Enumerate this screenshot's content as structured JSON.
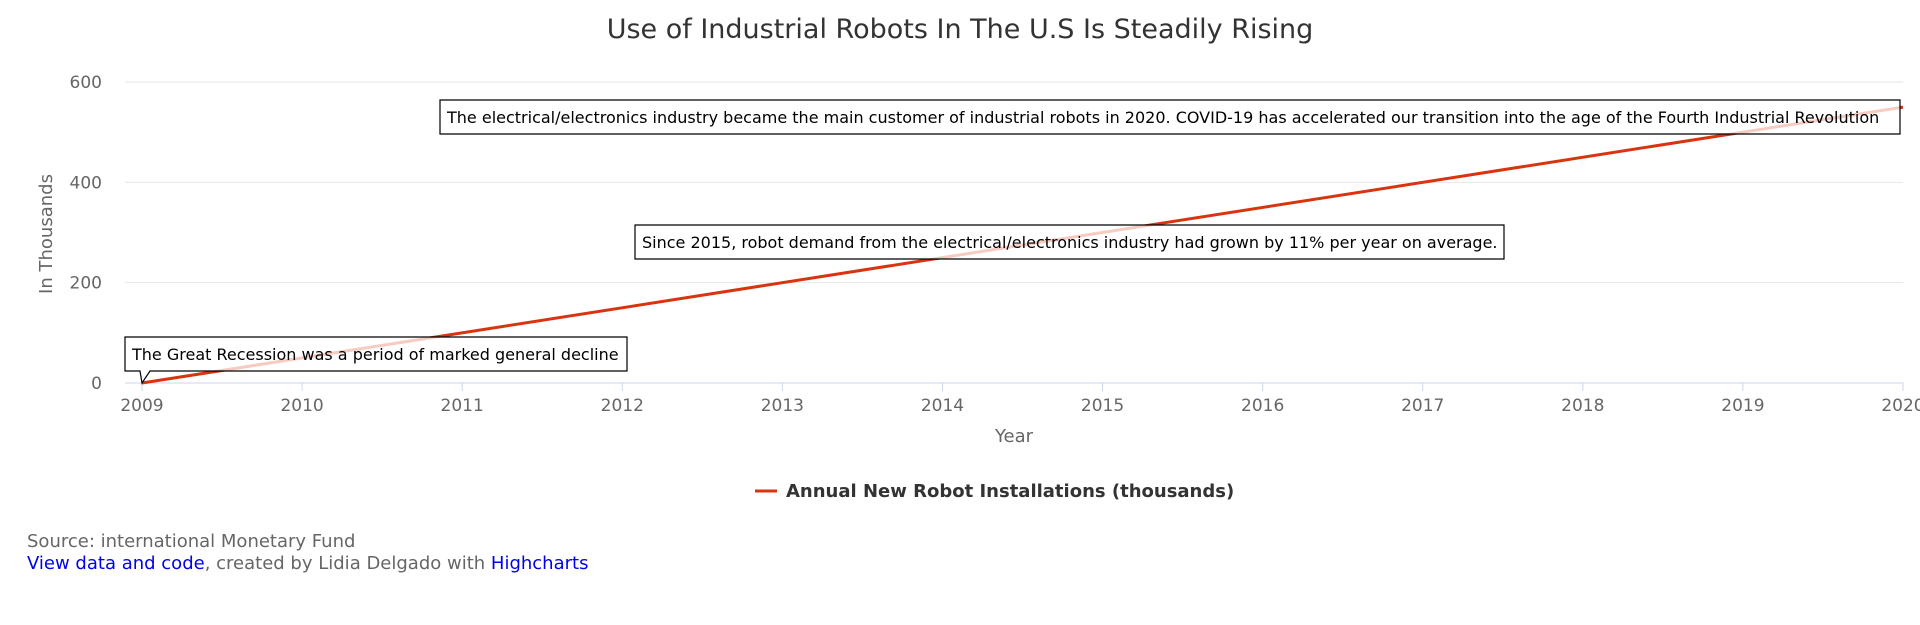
{
  "chart_data": {
    "type": "line",
    "title": "Use of Industrial Robots In The U.S Is Steadily Rising",
    "xlabel": "Year",
    "ylabel": "In Thousands",
    "x": [
      2009,
      2010,
      2011,
      2012,
      2013,
      2014,
      2015,
      2016,
      2017,
      2018,
      2019,
      2020
    ],
    "xlim": [
      2009,
      2020
    ],
    "ylim": [
      0,
      600
    ],
    "yticks": [
      0,
      200,
      400,
      600
    ],
    "grid": true,
    "legend_position": "bottom-center",
    "series": [
      {
        "name": "Annual New Robot Installations (thousands)",
        "color": "#d9330f",
        "x": [
          2009,
          2020
        ],
        "values": [
          0,
          550
        ]
      }
    ],
    "annotations": [
      {
        "x": 2009,
        "y": 0,
        "text": "The Great Recession was a period of marked general decline"
      },
      {
        "x": 2015,
        "y": 300,
        "text": "Since 2015, robot demand from the electrical/electronics industry had grown by 11% per year on average."
      },
      {
        "x": 2020,
        "y": 550,
        "text": "The electrical/electronics industry became the main customer of industrial robots in 2020. COVID-19 has accelerated our transition into the age of the Fourth Industrial Revolution"
      }
    ]
  },
  "credits": {
    "source": "Source: international Monetary Fund",
    "link_text": "View data and code",
    "middle_text": ", created by Lidia Delgado with ",
    "highcharts_text": "Highcharts"
  }
}
